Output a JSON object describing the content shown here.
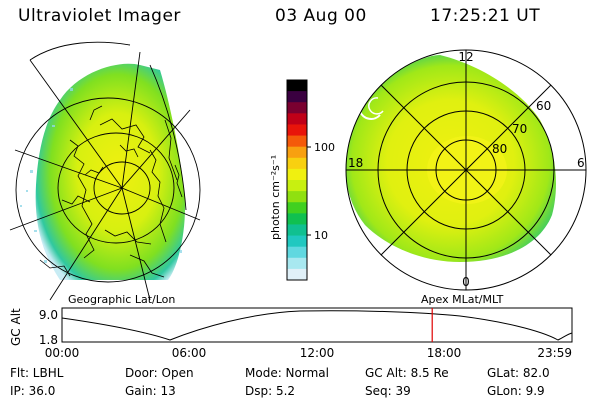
{
  "header": {
    "title": "Ultraviolet Imager",
    "date": "03 Aug 00",
    "time": "17:25:21 UT"
  },
  "left_panel": {
    "caption": "Geographic Lat/Lon"
  },
  "right_panel": {
    "caption": "Apex MLat/MLT",
    "mlt_labels": {
      "top": "12",
      "left": "18",
      "right": "6",
      "bottom": "0"
    },
    "lat_labels": [
      "60",
      "70",
      "80"
    ]
  },
  "colorbar": {
    "unit_label": "photon cm⁻²s⁻¹",
    "ticks": [
      "100",
      "10"
    ],
    "colors": [
      "#000000",
      "#3a0040",
      "#7a0030",
      "#c00018",
      "#e8140a",
      "#f45a0a",
      "#f8a010",
      "#f8d010",
      "#f0f010",
      "#c8f010",
      "#90e010",
      "#40d020",
      "#10c050",
      "#10c090",
      "#20c8c0",
      "#60d8e0",
      "#a8e8f0",
      "#e0f0f8"
    ]
  },
  "timeline": {
    "ylabel": "GC Alt",
    "y_max": "9.0",
    "y_min": "1.8",
    "x_ticks": [
      "00:00",
      "06:00",
      "12:00",
      "18:00",
      "23:59"
    ],
    "marker_time_hours": 17.42,
    "marker_color": "#e00000"
  },
  "info": {
    "row1": [
      "Flt: LBHL",
      "Door: Open",
      "Mode: Normal",
      "GC Alt: 8.5 Re",
      "GLat:  82.0"
    ],
    "row2": [
      "IP: 36.0",
      "Gain: 13",
      "Dsp:    5.2",
      "Seq: 39",
      "GLon:   9.9"
    ]
  }
}
